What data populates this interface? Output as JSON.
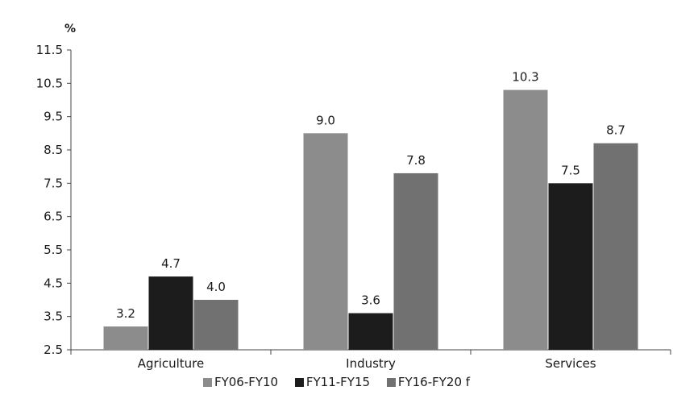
{
  "chart_data": {
    "type": "bar",
    "y_unit_label": "%",
    "categories": [
      "Agriculture",
      "Industry",
      "Services"
    ],
    "series": [
      {
        "name": "FY06-FY10",
        "values": [
          3.2,
          9.0,
          10.3
        ],
        "labels": [
          "3.2",
          "9.0",
          "10.3"
        ],
        "color": "#8c8c8c"
      },
      {
        "name": "FY11-FY15",
        "values": [
          4.7,
          3.6,
          7.5
        ],
        "labels": [
          "4.7",
          "3.6",
          "7.5"
        ],
        "color": "#1c1c1c"
      },
      {
        "name": "FY16-FY20 f",
        "values": [
          4.0,
          7.8,
          8.7
        ],
        "labels": [
          "4.0",
          "7.8",
          "8.7"
        ],
        "color": "#717171"
      }
    ],
    "ylim": [
      2.5,
      11.5
    ],
    "y_ticks": [
      "2.5",
      "3.5",
      "4.5",
      "5.5",
      "6.5",
      "7.5",
      "8.5",
      "9.5",
      "10.5",
      "11.5"
    ],
    "grid": false,
    "legend_position": "bottom"
  }
}
